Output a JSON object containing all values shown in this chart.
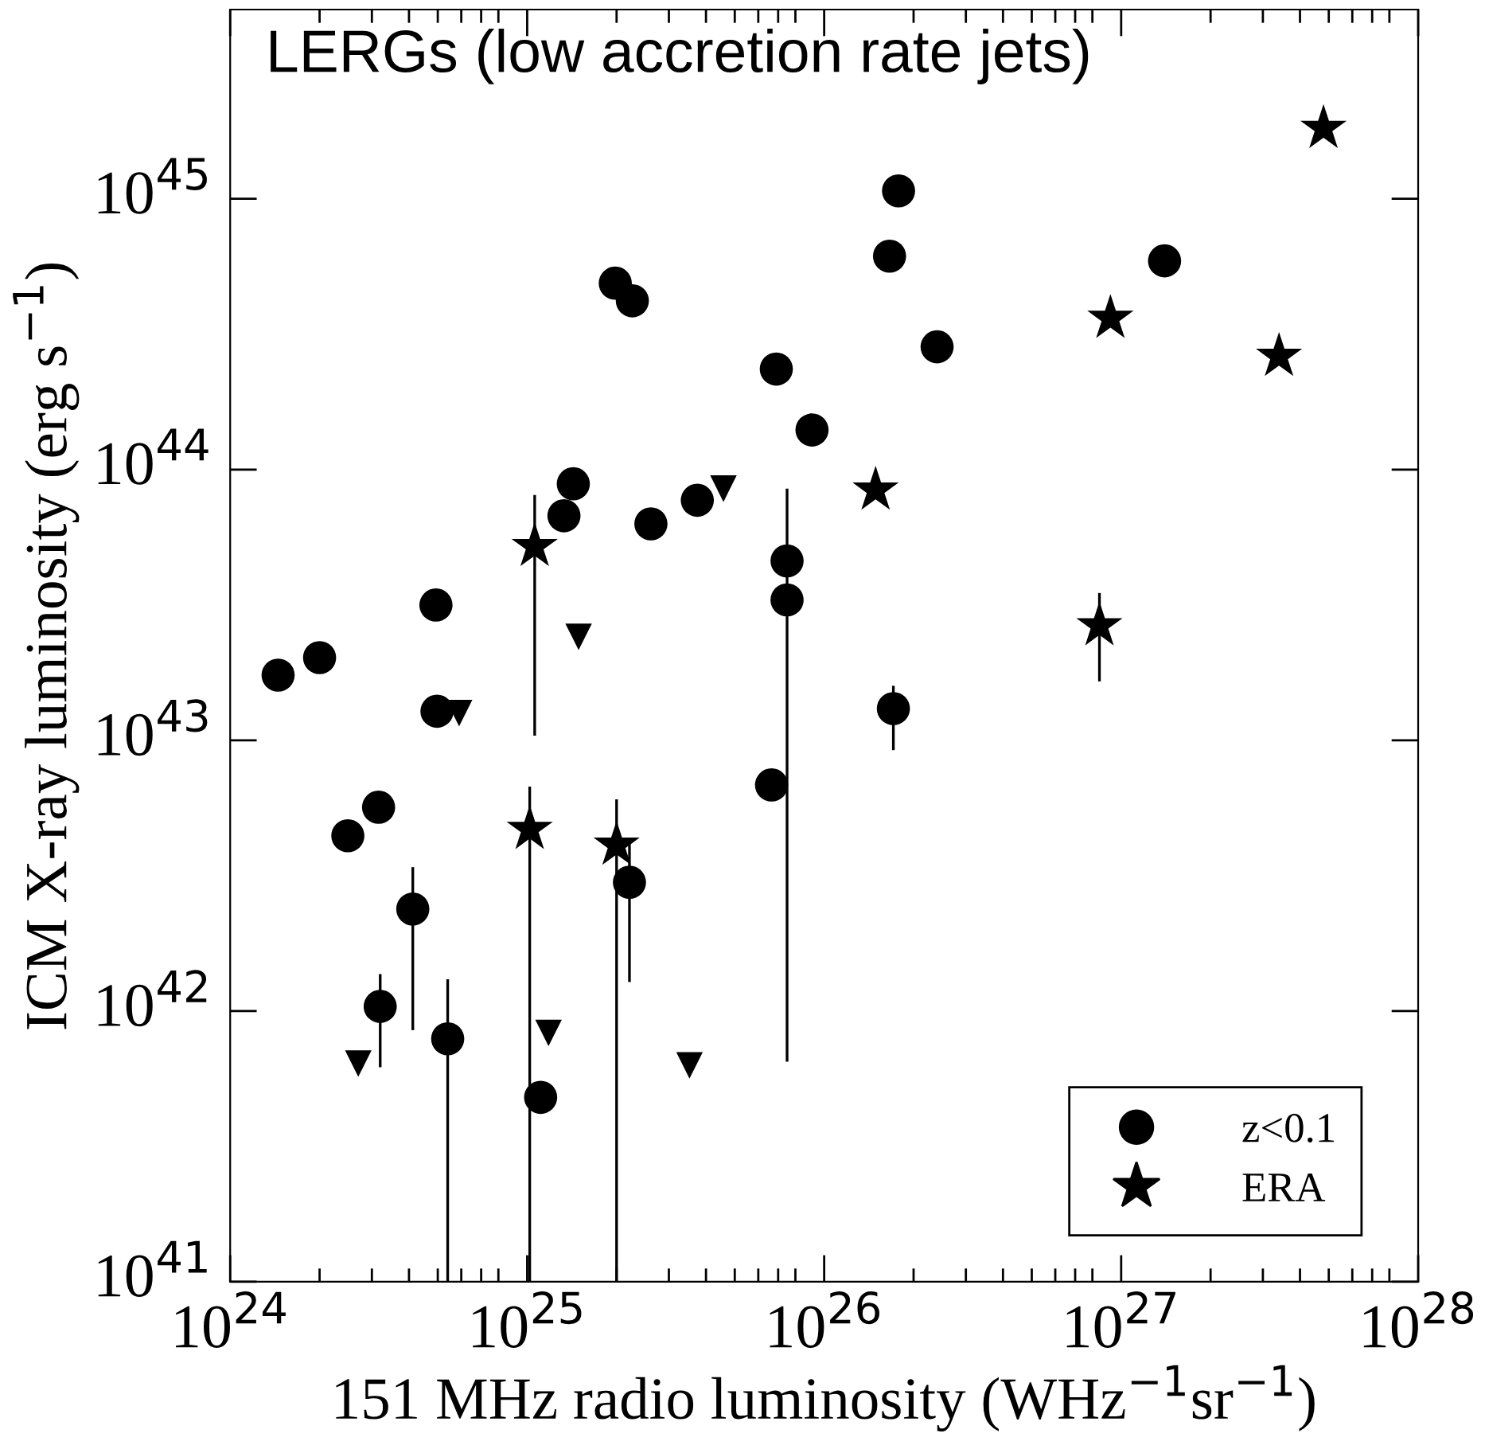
{
  "chart_data": {
    "type": "scatter",
    "title": "LERGs (low accretion rate jets)",
    "xlabel": "151 MHz radio luminosity (WHz$^{−1}$sr$^{−1}$)",
    "ylabel": "ICM X-ray luminosity (erg s$^{−1}$)",
    "log": "xy",
    "legend": "bottom right",
    "xlim": [
      1e+24,
      1e+28
    ],
    "ylim": [
      1e+41,
      5e+45
    ],
    "xticks": [
      {
        "value": 1e+24,
        "label": "10$^{24}$"
      },
      {
        "value": 1e+25,
        "label": "10$^{25}$"
      },
      {
        "value": 1e+26,
        "label": "10$^{26}$"
      },
      {
        "value": 1e+27,
        "label": "10$^{27}$"
      },
      {
        "value": 1e+28,
        "label": "10$^{28}$"
      }
    ],
    "yticks": [
      {
        "value": 1e+41,
        "label": "10$^{41}$"
      },
      {
        "value": 1e+42,
        "label": "10$^{42}$"
      },
      {
        "value": 1e+43,
        "label": "10$^{43}$"
      },
      {
        "value": 1e+44,
        "label": "10$^{44}$"
      },
      {
        "value": 1e+45,
        "label": "10$^{45}$"
      }
    ],
    "series": [
      {
        "name": "z<0.1",
        "color": "#000000",
        "marker": "circle",
        "x": [
          1.45e+24,
          2e+24,
          4.93e+24,
          4.97e+24,
          2.49e+24,
          3.16e+24,
          4.12e+24,
          3.2e+24,
          5.4e+24,
          1.11e+25,
          1.33e+25,
          1.43e+25,
          1.98e+25,
          2.26e+25,
          2.61e+25,
          3.74e+25,
          2.21e+25,
          6.9e+25,
          9.1e+25,
          7.5e+25,
          7.5e+25,
          6.65e+25,
          1.71e+26,
          1.66e+26,
          1.78e+26,
          2.4e+26,
          1.4e+27
        ],
        "values": [
          1.74e+43,
          2.02e+43,
          3.16e+43,
          1.28e+43,
          4.44e+42,
          5.66e+42,
          2.38e+42,
          1.04e+42,
          7.9e+41,
          4.8e+41,
          6.75e+43,
          8.86e+43,
          4.88e+44,
          4.2e+44,
          6.3e+43,
          7.7e+43,
          2.99e+42,
          2.35e+44,
          1.4e+44,
          4.6e+43,
          3.3e+43,
          6.84e+42,
          1.31e+43,
          6.14e+44,
          1.07e+45,
          2.84e+44,
          5.9e+44
        ],
        "errors": [
          null,
          null,
          null,
          null,
          null,
          null,
          [
            8.5e+41,
            3.4e+42
          ],
          [
            6.2e+41,
            1.37e+42
          ],
          [
            1e+41,
            1.31e+42
          ],
          null,
          null,
          null,
          null,
          null,
          null,
          null,
          [
            1.28e+42,
            4.15e+42
          ],
          null,
          null,
          [
            6.5e+41,
            8.5e+43
          ],
          null,
          null,
          [
            9.2e+42,
            1.59e+43
          ],
          null,
          null,
          null,
          null
        ]
      },
      {
        "name": "ERA",
        "color": "#000000",
        "marker": "star",
        "x": [
          1.06e+25,
          1.02e+25,
          2e+25,
          1.49e+26,
          9.2e+26,
          3.4e+27,
          4.8e+27,
          8.45e+26
        ],
        "values": [
          5.2e+43,
          4.69e+42,
          4.1e+42,
          8.4e+43,
          3.62e+44,
          2.62e+44,
          1.82e+45,
          2.65e+43
        ],
        "errors": [
          [
            1.04e+43,
            8.05e+43
          ],
          [
            1e+41,
            6.75e+42
          ],
          [
            1e+41,
            6.05e+42
          ],
          null,
          null,
          null,
          null,
          [
            1.65e+43,
            3.5e+43
          ]
        ]
      },
      {
        "color": "#000000",
        "marker": "triangle",
        "x": [
          2.7e+24,
          1.18e+25,
          3.52e+25,
          5.9e+24,
          1.49e+25,
          4.58e+25
        ],
        "values": [
          6.4e+41,
          8.3e+41,
          6.3e+41,
          1.26e+43,
          2.41e+43,
          8.5e+43
        ]
      }
    ]
  }
}
